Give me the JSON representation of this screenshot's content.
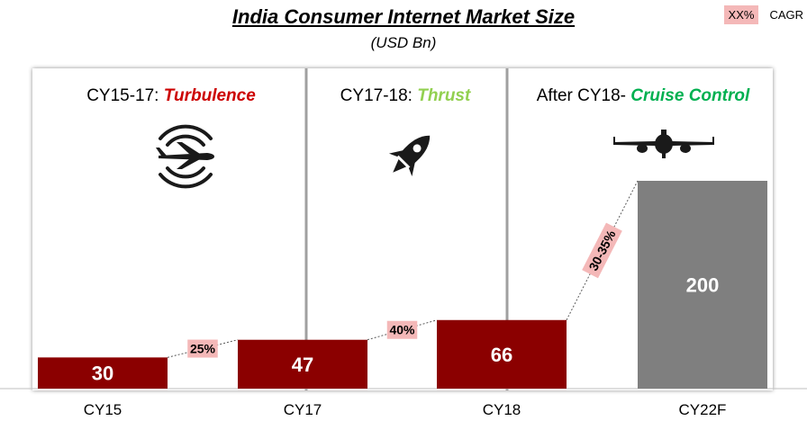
{
  "title": "India Consumer Internet Market Size",
  "subtitle": "(USD Bn)",
  "legend": {
    "swatch_label": "XX%",
    "label": "CAGR"
  },
  "phases": [
    {
      "prefix": "CY15-17: ",
      "name": "Turbulence",
      "color": "#cc0000",
      "icon": "airplane-turbulence-icon"
    },
    {
      "prefix": "CY17-18: ",
      "name": "Thrust",
      "color": "#92d050",
      "icon": "rocket-icon"
    },
    {
      "prefix": "After CY18- ",
      "name": "Cruise Control",
      "color": "#00b050",
      "icon": "airplane-front-icon"
    }
  ],
  "chart_data": {
    "type": "bar",
    "categories": [
      "CY15",
      "CY17",
      "CY18",
      "CY22F"
    ],
    "values": [
      30,
      47,
      66,
      200
    ],
    "data_labels": [
      "30",
      "47",
      "66",
      "200"
    ],
    "bar_colors": [
      "#8b0000",
      "#8b0000",
      "#8b0000",
      "#7f7f7f"
    ],
    "ylim": [
      0,
      220
    ],
    "cagr_labels": [
      "25%",
      "40%",
      "30-35%"
    ]
  }
}
